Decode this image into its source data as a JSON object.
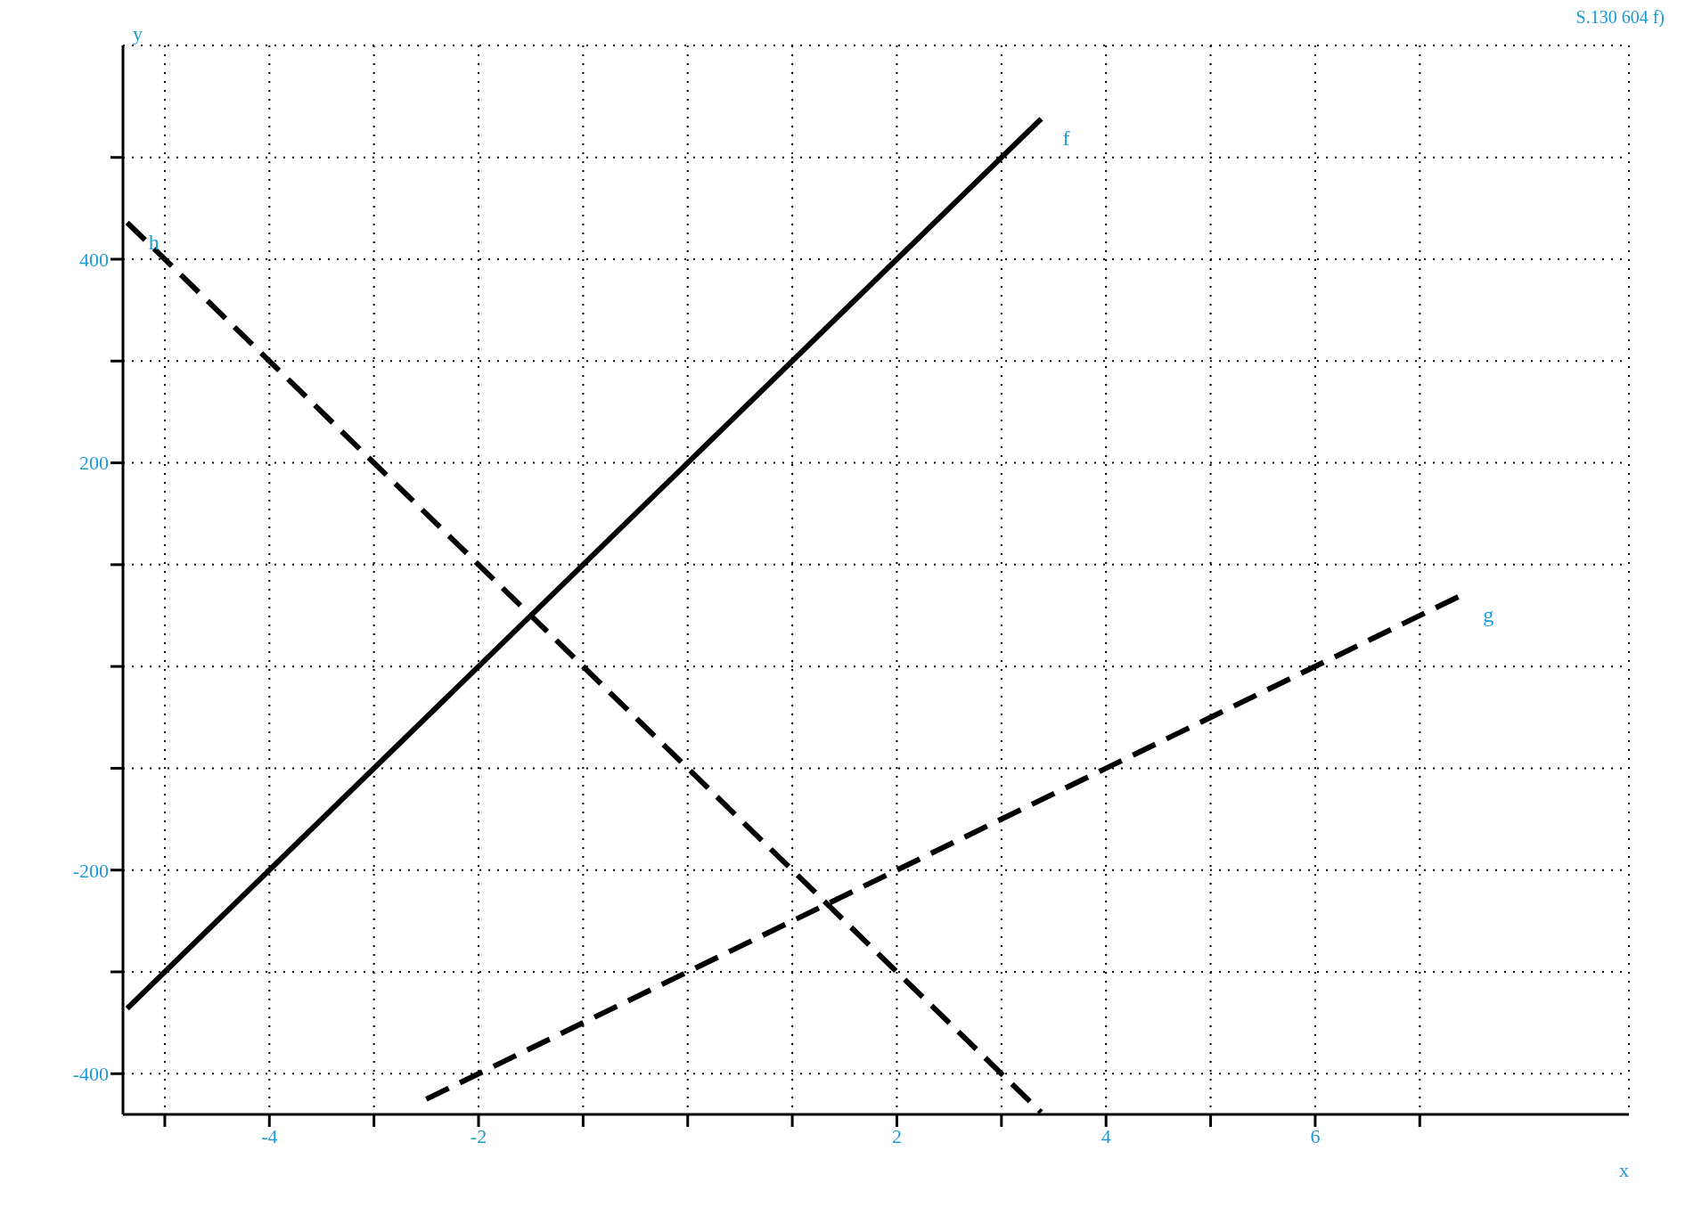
{
  "chart_data": {
    "type": "line",
    "annotations": [
      "S.130 604 f)"
    ],
    "xlabel": "x",
    "ylabel": "y",
    "xlim": [
      -5.4,
      9
    ],
    "ylim": [
      -440,
      610
    ],
    "xticks": [
      {
        "value": -5,
        "label": null
      },
      -4,
      {
        "value": -3,
        "label": null
      },
      -2,
      {
        "value": -1,
        "label": null
      },
      {
        "value": 0,
        "label": null
      },
      {
        "value": 1,
        "label": null
      },
      2,
      {
        "value": 3,
        "label": null
      },
      4,
      {
        "value": 5,
        "label": null
      },
      6,
      {
        "value": 7,
        "label": null
      }
    ],
    "yticks": [
      -400,
      {
        "value": -300,
        "label": null
      },
      -200,
      {
        "value": -100,
        "label": null
      },
      {
        "value": 0,
        "label": null
      },
      {
        "value": 100,
        "label": null
      },
      200,
      {
        "value": 300,
        "label": null
      },
      400,
      {
        "value": 500,
        "label": null
      }
    ],
    "grid": true,
    "legend": false,
    "marker": "none",
    "series": [
      {
        "name": "f",
        "color": "#000000",
        "line_style": "solid",
        "x": [
          -5.36,
          3.38
        ],
        "values": [
          -336,
          538
        ]
      },
      {
        "name": "g",
        "color": "#000000",
        "line_style": "dashed",
        "x": [
          -2.5,
          7.4
        ],
        "values": [
          -425,
          70
        ]
      },
      {
        "name": "h",
        "color": "#000000",
        "line_style": "dashed",
        "x": [
          -5.36,
          3.38
        ],
        "values": [
          436,
          -438
        ]
      }
    ]
  }
}
